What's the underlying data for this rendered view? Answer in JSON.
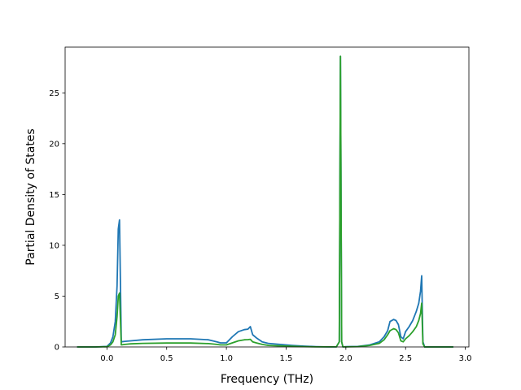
{
  "chart_data": {
    "type": "line",
    "title": "",
    "xlabel": "Frequency (THz)",
    "ylabel": "Partial Density of States",
    "xlim": [
      -0.35,
      3.03
    ],
    "ylim": [
      0,
      29.5
    ],
    "xticks": [
      0.0,
      0.5,
      1.0,
      1.5,
      2.0,
      2.5,
      3.0
    ],
    "xtick_labels": [
      "0.0",
      "0.5",
      "1.0",
      "1.5",
      "2.0",
      "2.5",
      "3.0"
    ],
    "yticks": [
      0,
      5,
      10,
      15,
      20,
      25
    ],
    "ytick_labels": [
      "0",
      "5",
      "10",
      "15",
      "20",
      "25"
    ],
    "grid": false,
    "legend": "none",
    "series": [
      {
        "color": "#1f77b4",
        "x": [
          -0.25,
          -0.1,
          0.0,
          0.03,
          0.05,
          0.07,
          0.085,
          0.095,
          0.105,
          0.12,
          0.15,
          0.2,
          0.3,
          0.5,
          0.7,
          0.85,
          0.92,
          0.95,
          1.0,
          1.05,
          1.1,
          1.15,
          1.18,
          1.2,
          1.22,
          1.25,
          1.3,
          1.35,
          1.45,
          1.55,
          1.65,
          1.75,
          1.85,
          1.92,
          1.945,
          1.955,
          1.965,
          1.975,
          2.0,
          2.1,
          2.2,
          2.28,
          2.32,
          2.35,
          2.37,
          2.4,
          2.42,
          2.44,
          2.46,
          2.48,
          2.5,
          2.53,
          2.56,
          2.59,
          2.61,
          2.625,
          2.635,
          2.645,
          2.66,
          2.7,
          2.8,
          2.9
        ],
        "y": [
          0,
          0,
          0.05,
          0.4,
          1.0,
          2.5,
          6.0,
          11.6,
          12.5,
          0.5,
          0.55,
          0.6,
          0.7,
          0.8,
          0.8,
          0.7,
          0.5,
          0.4,
          0.4,
          1.0,
          1.5,
          1.7,
          1.75,
          2.0,
          1.2,
          0.9,
          0.5,
          0.35,
          0.25,
          0.15,
          0.08,
          0.03,
          0.01,
          0.01,
          0.5,
          28.6,
          0.5,
          0.01,
          0.02,
          0.05,
          0.2,
          0.5,
          1.0,
          1.6,
          2.5,
          2.7,
          2.6,
          2.2,
          1.0,
          0.8,
          1.5,
          2.0,
          2.6,
          3.5,
          4.3,
          5.5,
          7.0,
          0.5,
          0,
          0,
          0,
          0
        ]
      },
      {
        "color": "#2ca02c",
        "x": [
          -0.25,
          -0.1,
          0.0,
          0.03,
          0.05,
          0.07,
          0.085,
          0.095,
          0.105,
          0.12,
          0.15,
          0.2,
          0.3,
          0.5,
          0.7,
          0.85,
          0.92,
          0.95,
          1.0,
          1.05,
          1.1,
          1.15,
          1.18,
          1.2,
          1.22,
          1.25,
          1.3,
          1.35,
          1.45,
          1.55,
          1.65,
          1.75,
          1.85,
          1.92,
          1.945,
          1.955,
          1.965,
          1.975,
          2.0,
          2.1,
          2.2,
          2.28,
          2.32,
          2.35,
          2.37,
          2.4,
          2.42,
          2.44,
          2.46,
          2.48,
          2.5,
          2.53,
          2.56,
          2.59,
          2.61,
          2.625,
          2.635,
          2.645,
          2.66,
          2.7,
          2.8,
          2.9
        ],
        "y": [
          0,
          0,
          0.02,
          0.2,
          0.5,
          1.2,
          3.0,
          5.0,
          5.3,
          0.2,
          0.25,
          0.3,
          0.35,
          0.38,
          0.38,
          0.33,
          0.25,
          0.2,
          0.2,
          0.4,
          0.6,
          0.7,
          0.72,
          0.75,
          0.5,
          0.4,
          0.25,
          0.15,
          0.1,
          0.06,
          0.03,
          0.01,
          0.005,
          0.005,
          0.5,
          28.6,
          0.5,
          0.005,
          0.01,
          0.03,
          0.15,
          0.35,
          0.7,
          1.2,
          1.6,
          1.8,
          1.7,
          1.4,
          0.6,
          0.5,
          0.8,
          1.1,
          1.5,
          2.0,
          2.6,
          3.3,
          4.3,
          0.3,
          0,
          0,
          0,
          0
        ]
      }
    ]
  }
}
